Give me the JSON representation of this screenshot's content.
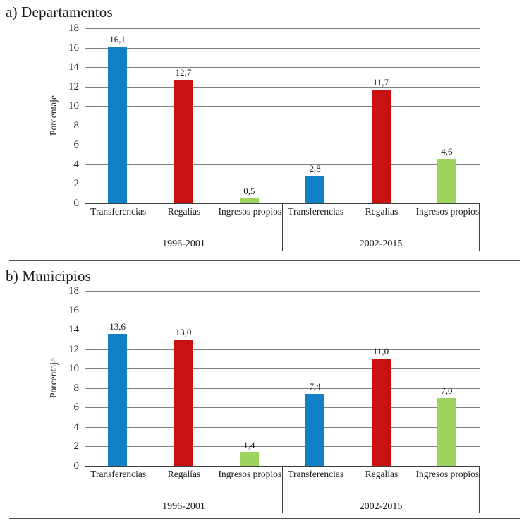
{
  "page": {
    "background": "#ffffff"
  },
  "colors": {
    "gridline": "#808080",
    "axis_box": "#3f3f3f",
    "rule": "#4f4f4f"
  },
  "chart_data": [
    {
      "type": "bar",
      "title": "a) Departamentos",
      "ylabel": "Porcentaje",
      "xlabel": "",
      "ylim": [
        0,
        18
      ],
      "ytick_step": 2,
      "ytick_labels": [
        "18",
        "16",
        "14",
        "12",
        "10",
        "8",
        "6",
        "4",
        "2",
        "0"
      ],
      "grid": true,
      "legend": "none",
      "categories": [
        "Transferencias",
        "Regalías",
        "Ingresos propios"
      ],
      "bar_colors": [
        "#1180C6",
        "#C91111",
        "#9CD45E"
      ],
      "groups": [
        {
          "label": "1996-2001",
          "values": [
            16.1,
            12.7,
            0.5
          ],
          "value_labels": [
            "16,1",
            "12,7",
            "0,5"
          ]
        },
        {
          "label": "2002-2015",
          "values": [
            2.8,
            11.7,
            4.6
          ],
          "value_labels": [
            "2,8",
            "11,7",
            "4,6"
          ]
        }
      ]
    },
    {
      "type": "bar",
      "title": "b) Municipios",
      "ylabel": "Porcentaje",
      "xlabel": "",
      "ylim": [
        0,
        18
      ],
      "ytick_step": 2,
      "ytick_labels": [
        "18",
        "16",
        "14",
        "12",
        "10",
        "8",
        "6",
        "4",
        "2",
        "0"
      ],
      "grid": true,
      "legend": "none",
      "categories": [
        "Transferencias",
        "Regalías",
        "Ingresos propios"
      ],
      "bar_colors": [
        "#1180C6",
        "#C91111",
        "#9CD45E"
      ],
      "groups": [
        {
          "label": "1996-2001",
          "values": [
            13.6,
            13.0,
            1.4
          ],
          "value_labels": [
            "13,6",
            "13,0",
            "1,4"
          ]
        },
        {
          "label": "2002-2015",
          "values": [
            7.4,
            11.0,
            7.0
          ],
          "value_labels": [
            "7,4",
            "11,0",
            "7,0"
          ]
        }
      ]
    }
  ]
}
